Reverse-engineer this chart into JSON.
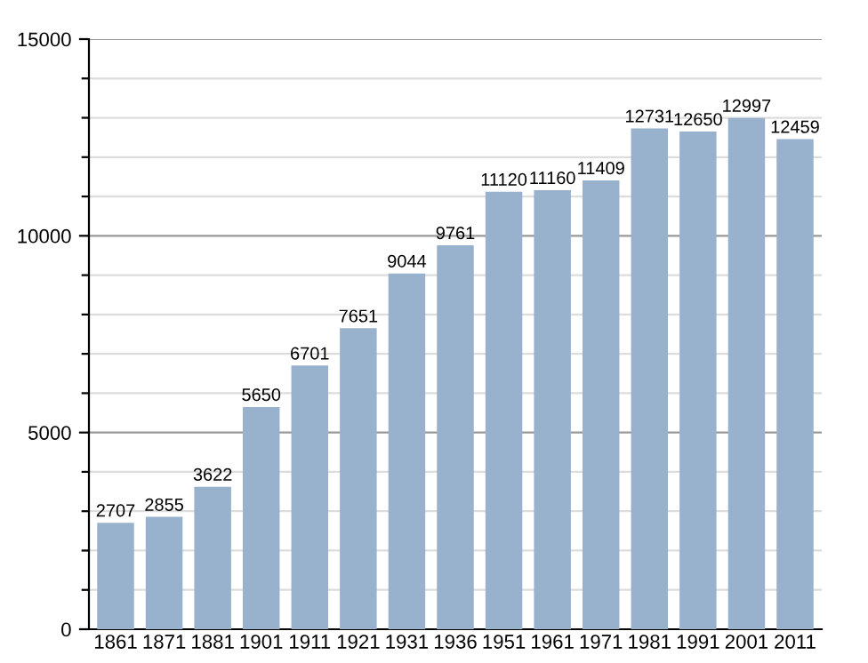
{
  "chart_data": {
    "type": "bar",
    "categories": [
      "1861",
      "1871",
      "1881",
      "1901",
      "1911",
      "1921",
      "1931",
      "1936",
      "1951",
      "1961",
      "1971",
      "1981",
      "1991",
      "2001",
      "2011"
    ],
    "values": [
      2707,
      2855,
      3622,
      5650,
      6701,
      7651,
      9044,
      9761,
      11120,
      11160,
      11409,
      12731,
      12650,
      12997,
      12459
    ],
    "color": "#98b1cc",
    "ylim": [
      0,
      15000
    ],
    "yticks": [
      0,
      {
        "value": 1000,
        "label": null
      },
      {
        "value": 2000,
        "label": null
      },
      {
        "value": 3000,
        "label": null
      },
      {
        "value": 4000,
        "label": null
      },
      5000,
      {
        "value": 6000,
        "label": null
      },
      {
        "value": 7000,
        "label": null
      },
      {
        "value": 8000,
        "label": null
      },
      {
        "value": 9000,
        "label": null
      },
      10000,
      {
        "value": 11000,
        "label": null
      },
      {
        "value": 12000,
        "label": null
      },
      {
        "value": 13000,
        "label": null
      },
      {
        "value": 14000,
        "label": null
      },
      15000
    ],
    "grid": "y",
    "data_labels": true
  }
}
